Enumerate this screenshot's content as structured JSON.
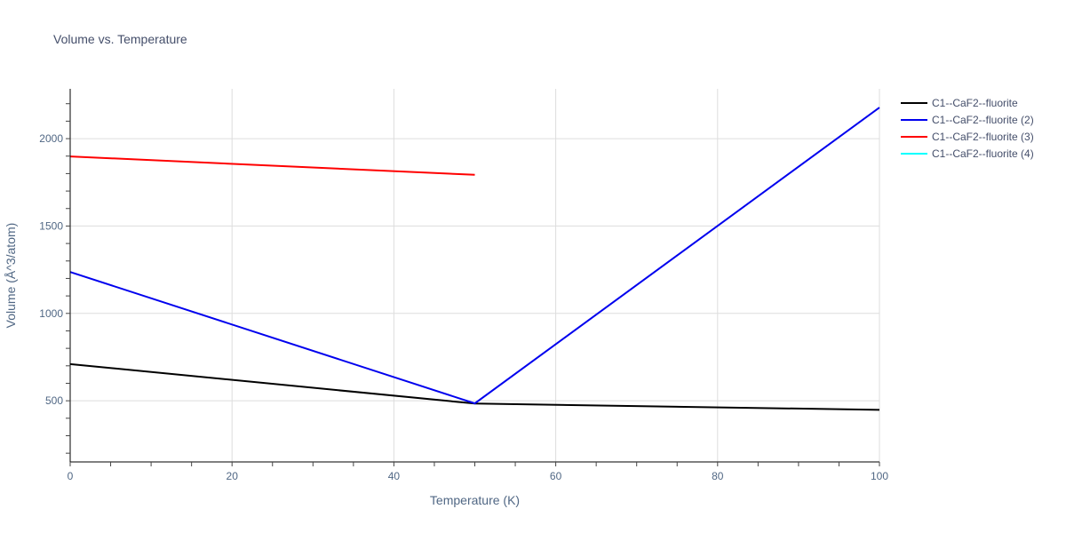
{
  "title": "Volume vs. Temperature",
  "chart_data": {
    "type": "line",
    "title": "Volume vs. Temperature",
    "xlabel": "Temperature (K)",
    "ylabel": "Volume (Å^3/atom)",
    "xlim": [
      0,
      100
    ],
    "ylim": [
      150,
      2285
    ],
    "x_ticks": [
      0,
      20,
      40,
      60,
      80,
      100
    ],
    "y_ticks": [
      500,
      1000,
      1500,
      2000
    ],
    "grid": true,
    "legend_position": "right",
    "series": [
      {
        "name": "C1--CaF2--fluorite",
        "color": "#000000",
        "x": [
          0,
          50,
          100
        ],
        "values": [
          710,
          484,
          448
        ]
      },
      {
        "name": "C1--CaF2--fluorite (2)",
        "color": "#0000ee",
        "x": [
          0,
          50,
          100
        ],
        "values": [
          1237,
          485,
          2178
        ]
      },
      {
        "name": "C1--CaF2--fluorite (3)",
        "color": "#ff0000",
        "x": [
          0,
          50
        ],
        "values": [
          1898,
          1793
        ]
      },
      {
        "name": "C1--CaF2--fluorite (4)",
        "color": "#00ffff",
        "x": [],
        "values": []
      }
    ]
  },
  "legend": {
    "items": [
      {
        "label": "C1--CaF2--fluorite",
        "color": "#000000"
      },
      {
        "label": "C1--CaF2--fluorite (2)",
        "color": "#0000ee"
      },
      {
        "label": "C1--CaF2--fluorite (3)",
        "color": "#ff0000"
      },
      {
        "label": "C1--CaF2--fluorite (4)",
        "color": "#00ffff"
      }
    ]
  },
  "axes": {
    "x_title": "Temperature (K)",
    "y_title": "Volume (Å^3/atom)",
    "x_tick_labels": [
      "0",
      "20",
      "40",
      "60",
      "80",
      "100"
    ],
    "y_tick_labels": [
      "500",
      "1000",
      "1500",
      "2000"
    ]
  }
}
